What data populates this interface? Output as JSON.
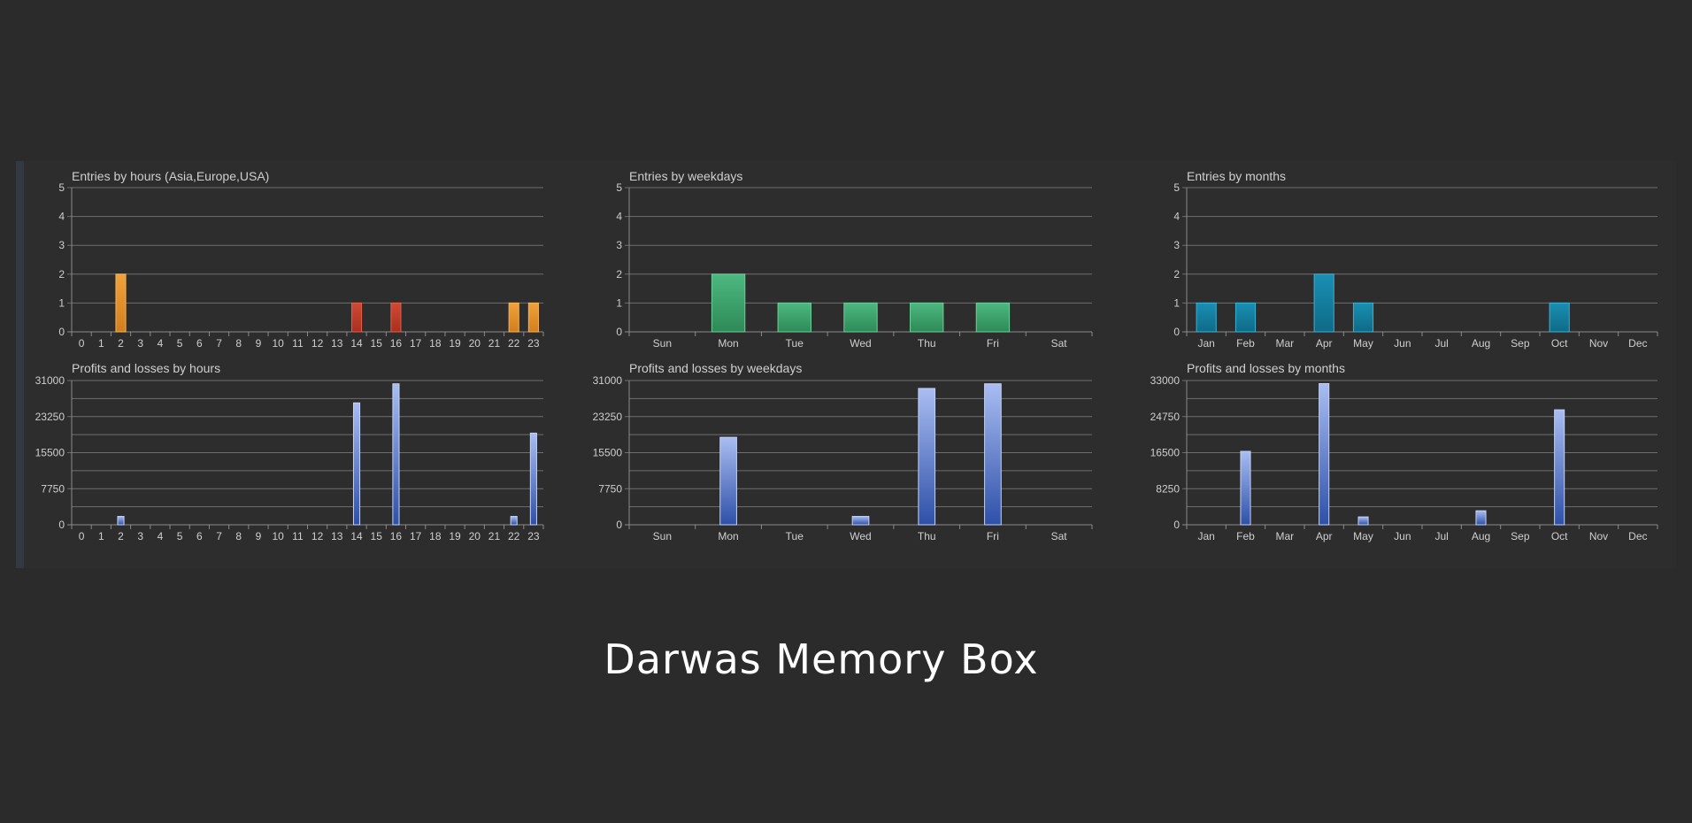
{
  "caption": "Darwas Memory Box",
  "colors": {
    "background": "#2b2b2b",
    "text": "#cfcfcf",
    "grid": "#6e6e6e",
    "orange": "#e8922a",
    "red": "#c0392b",
    "green": "#3aa16a",
    "teal": "#137a99",
    "blue_top": "#a9bdf2",
    "blue_bottom": "#2e50a8"
  },
  "chart_data": [
    {
      "id": "entries-hours",
      "type": "bar",
      "title": "Entries by hours (Asia,Europe,USA)",
      "categories": [
        "0",
        "1",
        "2",
        "3",
        "4",
        "5",
        "6",
        "7",
        "8",
        "9",
        "10",
        "11",
        "12",
        "13",
        "14",
        "15",
        "16",
        "17",
        "18",
        "19",
        "20",
        "21",
        "22",
        "23"
      ],
      "values": [
        0,
        0,
        2,
        0,
        0,
        0,
        0,
        0,
        0,
        0,
        0,
        0,
        0,
        0,
        1,
        0,
        1,
        0,
        0,
        0,
        0,
        0,
        1,
        1
      ],
      "bar_colors": [
        "orange",
        "orange",
        "orange",
        "orange",
        "orange",
        "orange",
        "orange",
        "orange",
        "orange",
        "orange",
        "orange",
        "orange",
        "orange",
        "orange",
        "red",
        "red",
        "red",
        "orange",
        "orange",
        "orange",
        "orange",
        "orange",
        "orange",
        "orange"
      ],
      "yticks": [
        0,
        1,
        2,
        3,
        4,
        5
      ],
      "ylim": [
        0,
        5
      ],
      "grid": true
    },
    {
      "id": "entries-weekdays",
      "type": "bar",
      "title": "Entries by weekdays",
      "categories": [
        "Sun",
        "Mon",
        "Tue",
        "Wed",
        "Thu",
        "Fri",
        "Sat"
      ],
      "values": [
        0,
        2,
        1,
        1,
        1,
        1,
        0
      ],
      "color": "green",
      "yticks": [
        0,
        1,
        2,
        3,
        4,
        5
      ],
      "ylim": [
        0,
        5
      ],
      "grid": true
    },
    {
      "id": "entries-months",
      "type": "bar",
      "title": "Entries by months",
      "categories": [
        "Jan",
        "Feb",
        "Mar",
        "Apr",
        "May",
        "Jun",
        "Jul",
        "Aug",
        "Sep",
        "Oct",
        "Nov",
        "Dec"
      ],
      "values": [
        1,
        1,
        0,
        2,
        1,
        0,
        0,
        0,
        0,
        1,
        0,
        0
      ],
      "color": "teal",
      "yticks": [
        0,
        1,
        2,
        3,
        4,
        5
      ],
      "ylim": [
        0,
        5
      ],
      "grid": true
    },
    {
      "id": "pnl-hours",
      "type": "bar",
      "title": "Profits and losses by hours",
      "categories": [
        "0",
        "1",
        "2",
        "3",
        "4",
        "5",
        "6",
        "7",
        "8",
        "9",
        "10",
        "11",
        "12",
        "13",
        "14",
        "15",
        "16",
        "17",
        "18",
        "19",
        "20",
        "21",
        "22",
        "23"
      ],
      "values": [
        0,
        0,
        1800,
        0,
        0,
        0,
        0,
        0,
        0,
        0,
        0,
        0,
        0,
        0,
        26200,
        0,
        30300,
        0,
        0,
        0,
        0,
        0,
        1800,
        19700
      ],
      "color": "blue",
      "yticks": [
        "0",
        "7750",
        "15500",
        "23250",
        "31000"
      ],
      "ylim": [
        0,
        31000
      ],
      "grid": true
    },
    {
      "id": "pnl-weekdays",
      "type": "bar",
      "title": "Profits and losses by weekdays",
      "categories": [
        "Sun",
        "Mon",
        "Tue",
        "Wed",
        "Thu",
        "Fri",
        "Sat"
      ],
      "values": [
        0,
        18800,
        0,
        1800,
        29300,
        30300,
        0
      ],
      "color": "blue",
      "yticks": [
        "0",
        "7750",
        "15500",
        "23250",
        "31000"
      ],
      "ylim": [
        0,
        31000
      ],
      "grid": true
    },
    {
      "id": "pnl-months",
      "type": "bar",
      "title": "Profits and losses by months",
      "categories": [
        "Jan",
        "Feb",
        "Mar",
        "Apr",
        "May",
        "Jun",
        "Jul",
        "Aug",
        "Sep",
        "Oct",
        "Nov",
        "Dec"
      ],
      "values": [
        0,
        16800,
        0,
        32300,
        1800,
        0,
        0,
        3200,
        0,
        26300,
        0,
        0
      ],
      "color": "blue",
      "yticks": [
        "0",
        "8250",
        "16500",
        "24750",
        "33000"
      ],
      "ylim": [
        0,
        33000
      ],
      "grid": true
    }
  ]
}
